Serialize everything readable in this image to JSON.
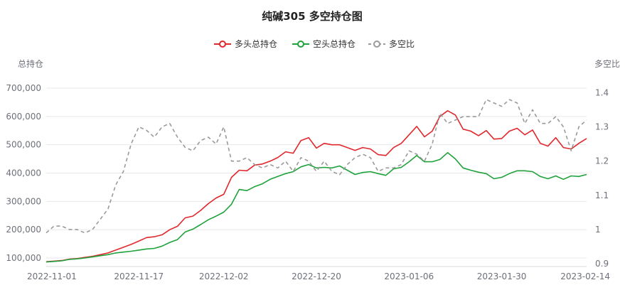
{
  "chart_data": {
    "type": "line",
    "title": "纯碱305 多空持仓图",
    "ylabel_left": "总持仓",
    "ylabel_right": "多空比",
    "ylim_left": [
      80000,
      720000
    ],
    "ylim_right": [
      0.9,
      1.43
    ],
    "yticks_left": [
      "100,000",
      "200,000",
      "300,000",
      "400,000",
      "500,000",
      "600,000",
      "700,000"
    ],
    "yticks_left_values": [
      100000,
      200000,
      300000,
      400000,
      500000,
      600000,
      700000
    ],
    "yticks_right": [
      "0.9",
      "1",
      "1.1",
      "1.2",
      "1.3",
      "1.4"
    ],
    "yticks_right_values": [
      0.9,
      1.0,
      1.1,
      1.2,
      1.3,
      1.4
    ],
    "x_labels": [
      "2022-11-01",
      "2022-11-17",
      "2022-12-02",
      "2022-12-20",
      "2023-01-06",
      "2023-01-30",
      "2023-02-14"
    ],
    "x_label_index": [
      0,
      12,
      23,
      35,
      47,
      59,
      70
    ],
    "legend_position": "top-center",
    "grid": true,
    "series": [
      {
        "name": "多头总持仓",
        "color": "#e0282d",
        "dashed": false,
        "axis": "left",
        "values": [
          87000,
          89000,
          91000,
          96000,
          98000,
          102000,
          106000,
          112000,
          118000,
          128000,
          138000,
          148000,
          160000,
          172000,
          175000,
          182000,
          200000,
          212000,
          242000,
          248000,
          268000,
          292000,
          312000,
          325000,
          385000,
          410000,
          408000,
          428000,
          432000,
          442000,
          455000,
          475000,
          470000,
          515000,
          525000,
          488000,
          505000,
          500000,
          500000,
          490000,
          480000,
          490000,
          485000,
          465000,
          462000,
          490000,
          505000,
          535000,
          565000,
          528000,
          548000,
          600000,
          620000,
          605000,
          555000,
          548000,
          532000,
          550000,
          520000,
          522000,
          548000,
          558000,
          535000,
          552000,
          505000,
          495000,
          525000,
          490000,
          485000,
          505000,
          522000
        ]
      },
      {
        "name": "空头总持仓",
        "color": "#1fa23b",
        "dashed": false,
        "axis": "left",
        "values": [
          86000,
          88000,
          90000,
          95000,
          97000,
          100000,
          104000,
          108000,
          112000,
          118000,
          121000,
          124000,
          128000,
          132000,
          134000,
          142000,
          155000,
          165000,
          192000,
          202000,
          218000,
          235000,
          248000,
          262000,
          290000,
          342000,
          338000,
          352000,
          362000,
          378000,
          388000,
          398000,
          405000,
          422000,
          430000,
          418000,
          420000,
          418000,
          425000,
          410000,
          395000,
          402000,
          405000,
          398000,
          392000,
          415000,
          420000,
          440000,
          462000,
          440000,
          440000,
          448000,
          472000,
          450000,
          418000,
          410000,
          403000,
          398000,
          380000,
          385000,
          398000,
          408000,
          408000,
          405000,
          388000,
          380000,
          390000,
          378000,
          390000,
          388000,
          395000
        ]
      },
      {
        "name": "多空比",
        "color": "#9a9a9a",
        "dashed": true,
        "axis": "right",
        "values": [
          0.99,
          1.01,
          1.01,
          1.0,
          1.0,
          0.99,
          1.0,
          1.03,
          1.06,
          1.13,
          1.17,
          1.25,
          1.3,
          1.29,
          1.27,
          1.3,
          1.31,
          1.27,
          1.24,
          1.23,
          1.26,
          1.27,
          1.25,
          1.3,
          1.2,
          1.2,
          1.21,
          1.19,
          1.18,
          1.19,
          1.18,
          1.2,
          1.17,
          1.21,
          1.2,
          1.17,
          1.2,
          1.17,
          1.16,
          1.19,
          1.21,
          1.22,
          1.21,
          1.17,
          1.18,
          1.18,
          1.19,
          1.23,
          1.22,
          1.2,
          1.25,
          1.34,
          1.31,
          1.32,
          1.33,
          1.33,
          1.33,
          1.38,
          1.37,
          1.36,
          1.38,
          1.37,
          1.31,
          1.35,
          1.31,
          1.31,
          1.33,
          1.3,
          1.23,
          1.3,
          1.32
        ]
      }
    ]
  }
}
